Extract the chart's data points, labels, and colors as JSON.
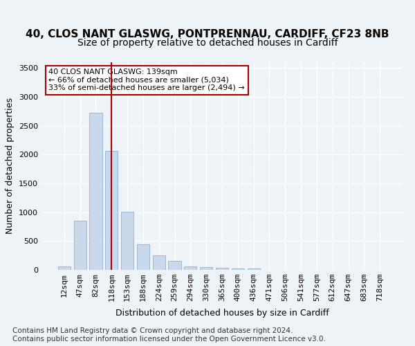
{
  "title_line1": "40, CLOS NANT GLASWG, PONTPRENNAU, CARDIFF, CF23 8NB",
  "title_line2": "Size of property relative to detached houses in Cardiff",
  "xlabel": "Distribution of detached houses by size in Cardiff",
  "ylabel": "Number of detached properties",
  "bar_values": [
    55,
    850,
    2720,
    2070,
    1010,
    450,
    250,
    160,
    65,
    45,
    40,
    30,
    20,
    0,
    0,
    0,
    0,
    0,
    0,
    0,
    0
  ],
  "x_labels": [
    "12sqm",
    "47sqm",
    "82sqm",
    "118sqm",
    "153sqm",
    "188sqm",
    "224sqm",
    "259sqm",
    "294sqm",
    "330sqm",
    "365sqm",
    "400sqm",
    "436sqm",
    "471sqm",
    "506sqm",
    "541sqm",
    "577sqm",
    "612sqm",
    "647sqm",
    "683sqm",
    "718sqm"
  ],
  "bar_color": "#c9d9eb",
  "bar_edge_color": "#7da8cc",
  "bar_width": 0.8,
  "vline_x": 3,
  "vline_color": "#aa0000",
  "ylim": [
    0,
    3600
  ],
  "yticks": [
    0,
    500,
    1000,
    1500,
    2000,
    2500,
    3000,
    3500
  ],
  "annotation_text": "40 CLOS NANT GLASWG: 139sqm\n← 66% of detached houses are smaller (5,034)\n33% of semi-detached houses are larger (2,494) →",
  "annotation_box_color": "#ffffff",
  "annotation_box_edge": "#aa0000",
  "footer_text": "Contains HM Land Registry data © Crown copyright and database right 2024.\nContains public sector information licensed under the Open Government Licence v3.0.",
  "bg_color": "#eef3f8",
  "plot_bg_color": "#eef3f8",
  "grid_color": "#ffffff",
  "title_fontsize": 11,
  "subtitle_fontsize": 10,
  "label_fontsize": 9,
  "tick_fontsize": 8,
  "footer_fontsize": 7.5
}
